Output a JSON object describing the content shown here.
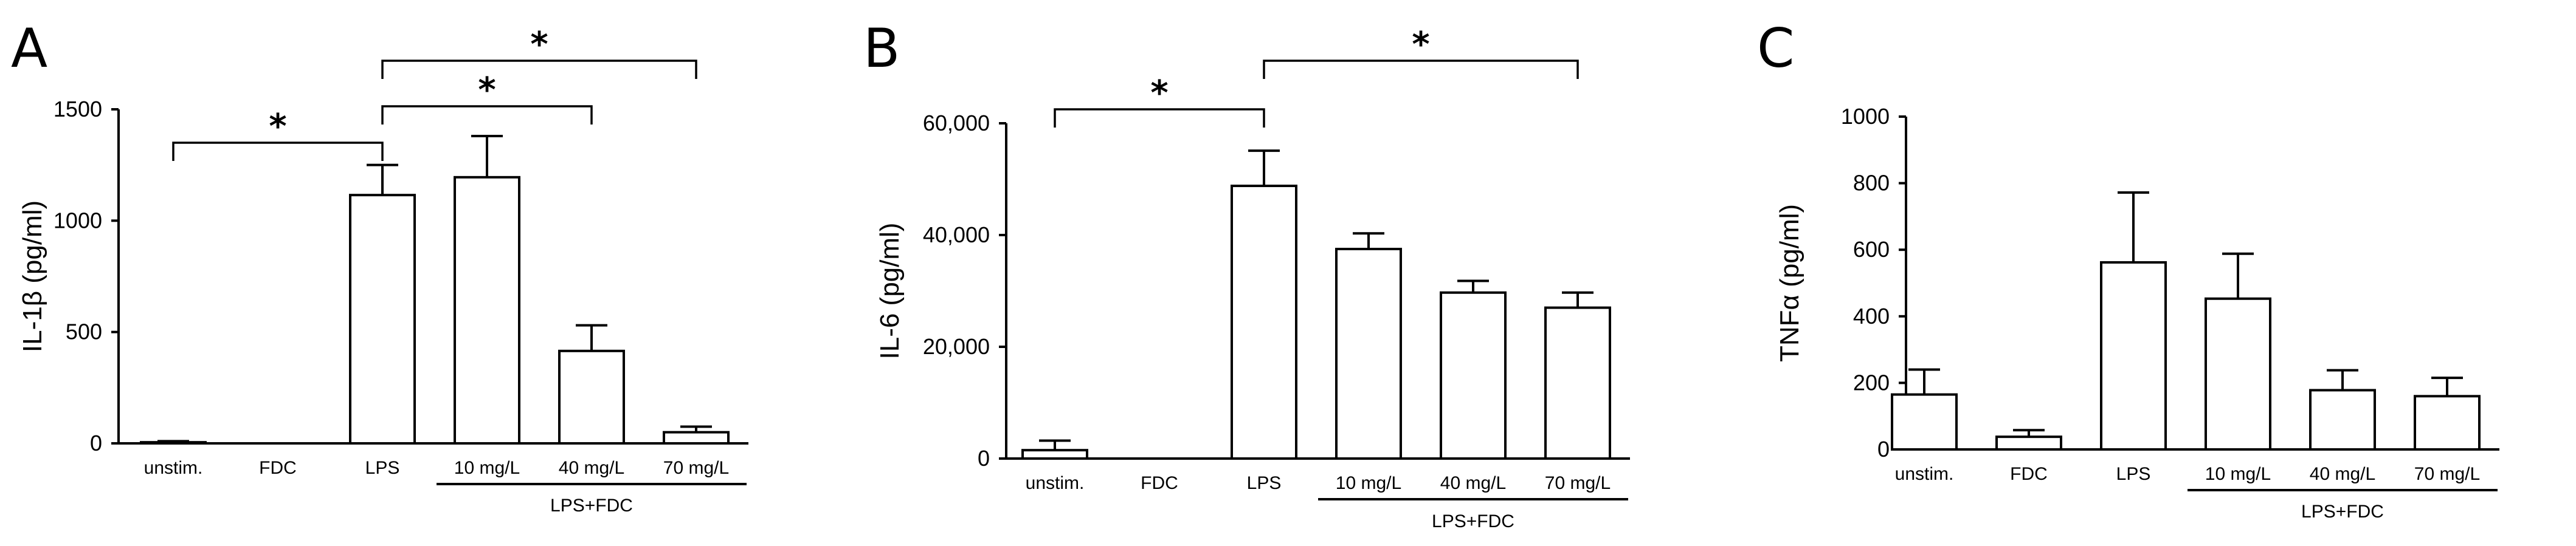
{
  "chart_data": [
    {
      "type": "bar",
      "panel": "A",
      "ylabel": "IL-1β (pg/ml)",
      "ylim": [
        0,
        1500
      ],
      "yticks": [
        0,
        500,
        1000,
        1500
      ],
      "ytick_labels": [
        "0",
        "500",
        "1000",
        "1500"
      ],
      "categories": [
        "unstim.",
        "FDC",
        "LPS",
        "10 mg/L",
        "40 mg/L",
        "70 mg/L"
      ],
      "values": [
        5,
        0,
        1115,
        1195,
        415,
        50
      ],
      "errors": [
        5,
        0,
        135,
        185,
        115,
        25
      ],
      "group_label": "LPS+FDC",
      "group_members": [
        3,
        4,
        5
      ],
      "significance": [
        {
          "from": 0,
          "to": 2,
          "label": "*"
        },
        {
          "from": 2,
          "to": 4,
          "label": "*"
        },
        {
          "from": 2,
          "to": 5,
          "label": "*"
        }
      ]
    },
    {
      "type": "bar",
      "panel": "B",
      "ylabel": "IL-6 (pg/ml)",
      "ylim": [
        0,
        60000
      ],
      "yticks": [
        0,
        20000,
        40000,
        60000
      ],
      "ytick_labels": [
        "0",
        "20,000",
        "40,000",
        "60,000"
      ],
      "categories": [
        "unstim.",
        "FDC",
        "LPS",
        "10 mg/L",
        "40 mg/L",
        "70 mg/L"
      ],
      "values": [
        1500,
        0,
        48800,
        37500,
        29700,
        27000
      ],
      "errors": [
        1700,
        0,
        6300,
        2800,
        2100,
        2700
      ],
      "group_label": "LPS+FDC",
      "group_members": [
        3,
        4,
        5
      ],
      "significance": [
        {
          "from": 0,
          "to": 2,
          "label": "*"
        },
        {
          "from": 2,
          "to": 5,
          "label": "*"
        }
      ]
    },
    {
      "type": "bar",
      "panel": "C",
      "ylabel": "TNFα (pg/ml)",
      "ylim": [
        0,
        1000
      ],
      "yticks": [
        0,
        200,
        400,
        600,
        800,
        1000
      ],
      "ytick_labels": [
        "0",
        "200",
        "400",
        "600",
        "800",
        "1000"
      ],
      "categories": [
        "unstim.",
        "FDC",
        "LPS",
        "10 mg/L",
        "40 mg/L",
        "70 mg/L"
      ],
      "values": [
        165,
        38,
        562,
        453,
        178,
        160
      ],
      "errors": [
        75,
        20,
        210,
        135,
        60,
        55
      ],
      "group_label": "LPS+FDC",
      "group_members": [
        3,
        4,
        5
      ],
      "significance": []
    }
  ]
}
